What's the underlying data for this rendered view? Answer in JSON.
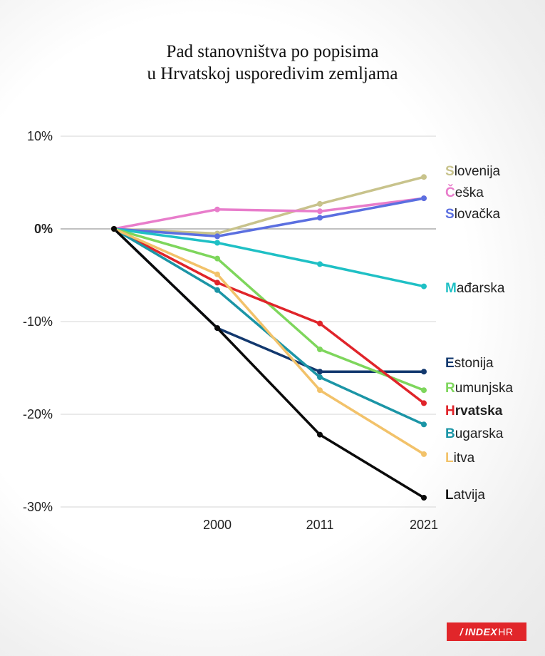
{
  "title_line1": "Pad stanovništva po popisima",
  "title_line2": "u Hrvatskoj usporedivim zemljama",
  "logo": {
    "main": "INDEX",
    "suffix": "HR",
    "mark": "/"
  },
  "chart_data": {
    "type": "line",
    "x": [
      "",
      "2000",
      "2011",
      "2021"
    ],
    "ylim": [
      -30,
      10
    ],
    "yticks": [
      {
        "value": 10,
        "label": "10%"
      },
      {
        "value": 0,
        "label": "0%"
      },
      {
        "value": -10,
        "label": "-10%"
      },
      {
        "value": -20,
        "label": "-20%"
      },
      {
        "value": -30,
        "label": "-30%"
      }
    ],
    "grid": true,
    "series": [
      {
        "name": "Slovenija",
        "color": "#c8c38c",
        "values": [
          0,
          -0.5,
          2.7,
          5.6
        ]
      },
      {
        "name": "Češka",
        "color": "#e87dcb",
        "values": [
          0,
          2.1,
          1.9,
          3.3
        ]
      },
      {
        "name": "Slovačka",
        "color": "#5b6fe0",
        "values": [
          0,
          -0.8,
          1.2,
          3.3
        ]
      },
      {
        "name": "Mađarska",
        "color": "#1fc0c5",
        "values": [
          0,
          -1.5,
          -3.8,
          -6.2
        ]
      },
      {
        "name": "Estonija",
        "color": "#12386e",
        "values": [
          0,
          -10.7,
          -15.4,
          -15.4
        ]
      },
      {
        "name": "Rumunjska",
        "color": "#7ed65c",
        "values": [
          0,
          -3.2,
          -13.0,
          -17.4
        ]
      },
      {
        "name": "Hrvatska",
        "color": "#e0242a",
        "values": [
          0,
          -5.8,
          -10.2,
          -18.8
        ]
      },
      {
        "name": "Bugarska",
        "color": "#1b95a6",
        "values": [
          0,
          -6.6,
          -16.0,
          -21.1
        ]
      },
      {
        "name": "Litva",
        "color": "#f2c26a",
        "values": [
          0,
          -4.9,
          -17.4,
          -24.3
        ]
      },
      {
        "name": "Latvija",
        "color": "#0a0a0a",
        "values": [
          0,
          -10.7,
          -22.2,
          -29.0
        ]
      }
    ]
  }
}
